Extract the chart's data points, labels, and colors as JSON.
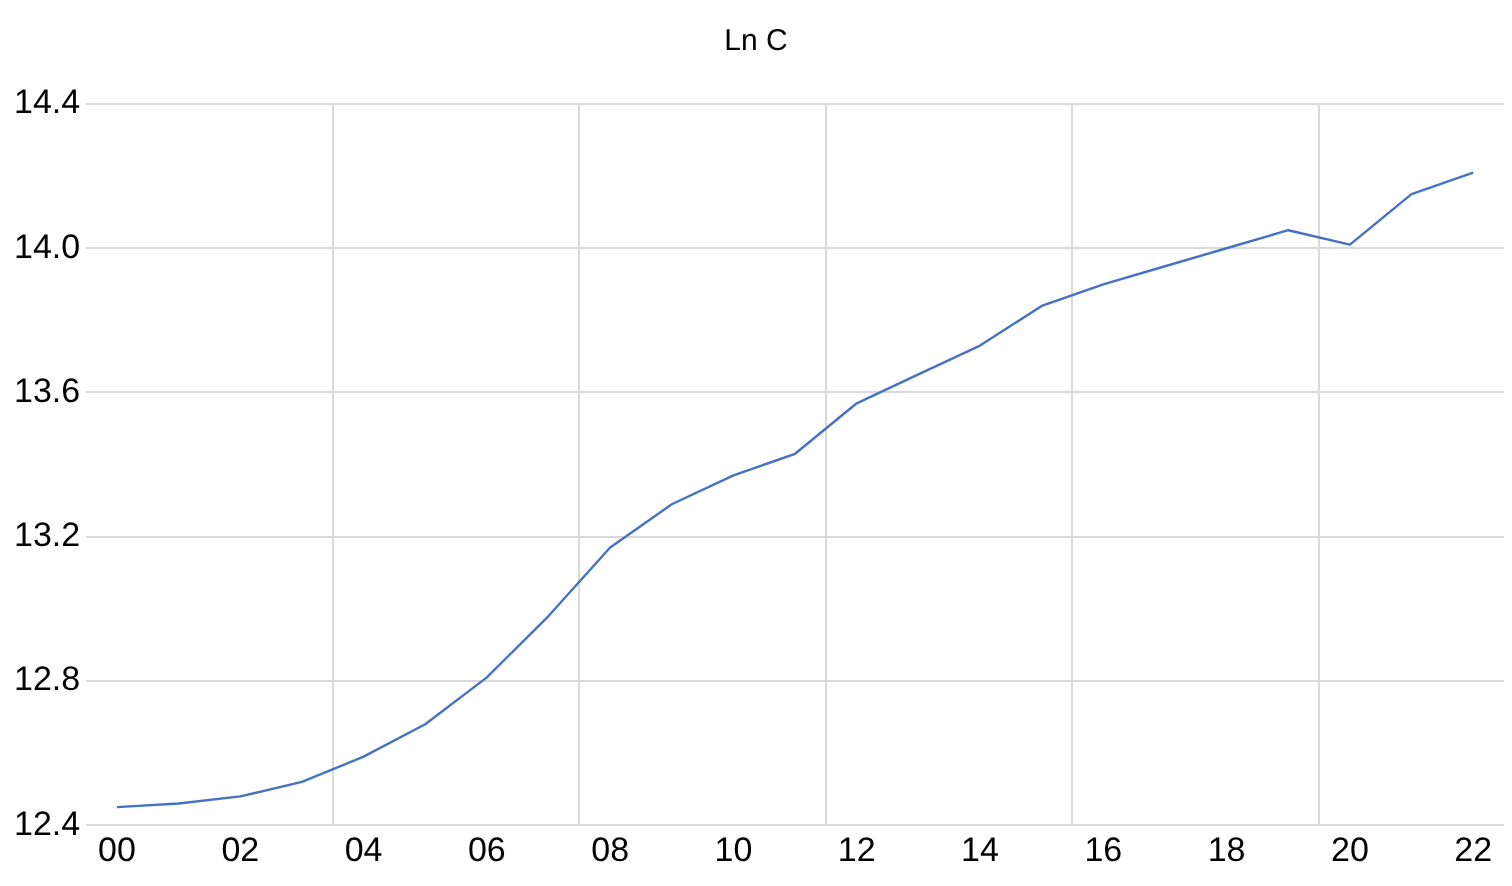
{
  "chart_data": {
    "type": "line",
    "title": "Ln C",
    "x": [
      0,
      1,
      2,
      3,
      4,
      5,
      6,
      7,
      8,
      9,
      10,
      11,
      12,
      13,
      14,
      15,
      16,
      17,
      18,
      19,
      20,
      21,
      22
    ],
    "series": [
      {
        "color": "#4472c4",
        "values": [
          12.45,
          12.46,
          12.48,
          12.52,
          12.59,
          12.68,
          12.81,
          12.98,
          13.17,
          13.29,
          13.37,
          13.43,
          13.57,
          13.65,
          13.73,
          13.84,
          13.9,
          13.95,
          14.0,
          14.05,
          14.01,
          14.15,
          14.21
        ]
      }
    ],
    "xlim": [
      -0.5,
      22.5
    ],
    "xticks": [
      {
        "value": 0,
        "label": "00"
      },
      {
        "value": 2,
        "label": "02"
      },
      {
        "value": 3.5,
        "label": null
      },
      {
        "value": 4,
        "label": "04"
      },
      {
        "value": 6,
        "label": "06"
      },
      {
        "value": 7.5,
        "label": null
      },
      {
        "value": 8,
        "label": "08"
      },
      {
        "value": 10,
        "label": "10"
      },
      {
        "value": 11.5,
        "label": null
      },
      {
        "value": 12,
        "label": "12"
      },
      {
        "value": 14,
        "label": "14"
      },
      {
        "value": 15.5,
        "label": null
      },
      {
        "value": 16,
        "label": "16"
      },
      {
        "value": 18,
        "label": "18"
      },
      {
        "value": 19.5,
        "label": null
      },
      {
        "value": 20,
        "label": "20"
      },
      {
        "value": 22,
        "label": "22"
      }
    ],
    "ylim": [
      12.4,
      14.4
    ],
    "yticks": [
      {
        "value": 12.4,
        "label": "12.4"
      },
      {
        "value": 12.8,
        "label": "12.8"
      },
      {
        "value": 13.2,
        "label": "13.2"
      },
      {
        "value": 13.6,
        "label": "13.6"
      },
      {
        "value": 14.0,
        "label": "14.0"
      },
      {
        "value": 14.4,
        "label": "14.4"
      }
    ],
    "grid": true,
    "marker": "none",
    "line_style": "solid",
    "legend": false
  }
}
